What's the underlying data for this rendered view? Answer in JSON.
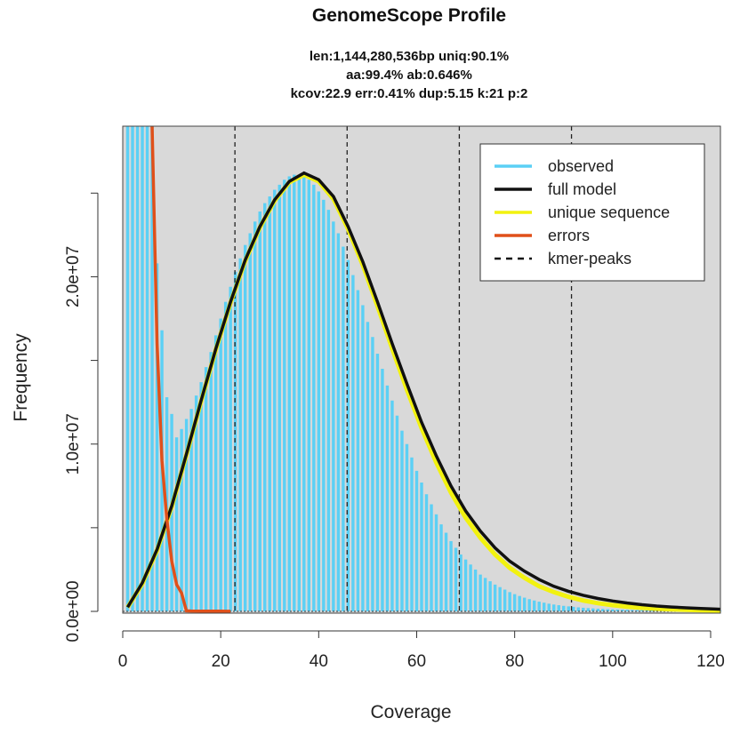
{
  "chart_data": {
    "type": "bar",
    "title": "GenomeScope Profile",
    "subtitle_lines": [
      "len:1,144,280,536bp uniq:90.1%",
      "aa:99.4% ab:0.646%",
      "kcov:22.9 err:0.41%  dup:5.15  k:21 p:2"
    ],
    "xlabel": "Coverage",
    "ylabel": "Frequency",
    "xlim": [
      0,
      122
    ],
    "ylim": [
      0,
      29000000
    ],
    "x_ticks": [
      0,
      20,
      40,
      60,
      80,
      100,
      120
    ],
    "x_tick_labels": [
      "0",
      "20",
      "40",
      "60",
      "80",
      "100",
      "120"
    ],
    "y_ticks": [
      0,
      10000000,
      20000000
    ],
    "y_tick_labels": [
      "0.0e+00",
      "1.0e+07",
      "2.0e+07"
    ],
    "y_minor_ticks": [
      5000000,
      15000000,
      25000000
    ],
    "observed": {
      "x": [
        1,
        2,
        3,
        4,
        5,
        6,
        7,
        8,
        9,
        10,
        11,
        12,
        13,
        14,
        15,
        16,
        17,
        18,
        19,
        20,
        21,
        22,
        23,
        24,
        25,
        26,
        27,
        28,
        29,
        30,
        31,
        32,
        33,
        34,
        35,
        36,
        37,
        38,
        39,
        40,
        41,
        42,
        43,
        44,
        45,
        46,
        47,
        48,
        49,
        50,
        51,
        52,
        53,
        54,
        55,
        56,
        57,
        58,
        59,
        60,
        61,
        62,
        63,
        64,
        65,
        66,
        67,
        68,
        69,
        70,
        71,
        72,
        73,
        74,
        75,
        76,
        77,
        78,
        79,
        80,
        81,
        82,
        83,
        84,
        85,
        86,
        87,
        88,
        89,
        90,
        91,
        92,
        93,
        94,
        95,
        96,
        97,
        98,
        99,
        100,
        101,
        102,
        103,
        104,
        105,
        106,
        107,
        108,
        109,
        110,
        111,
        112,
        113,
        114,
        115,
        116,
        117,
        118,
        119,
        120,
        121,
        122
      ],
      "values": [
        29000000,
        29000000,
        29000000,
        29000000,
        29000000,
        29000000,
        20800000,
        16800000,
        12800000,
        11800000,
        10400000,
        10900000,
        11500000,
        12100000,
        12900000,
        13700000,
        14600000,
        15500000,
        16500000,
        17500000,
        18500000,
        19400000,
        20300000,
        21100000,
        21900000,
        22600000,
        23300000,
        23900000,
        24400000,
        24800000,
        25200000,
        25500000,
        25800000,
        26000000,
        26100000,
        26100000,
        26000000,
        25800000,
        25500000,
        25100000,
        24600000,
        24000000,
        23300000,
        22600000,
        21800000,
        21000000,
        20100000,
        19200000,
        18300000,
        17300000,
        16400000,
        15400000,
        14500000,
        13500000,
        12600000,
        11700000,
        10800000,
        10000000,
        9200000,
        8400000,
        7700000,
        7000000,
        6400000,
        5800000,
        5200000,
        4700000,
        4200000,
        3800000,
        3400000,
        3100000,
        2800000,
        2500000,
        2200000,
        2000000,
        1800000,
        1600000,
        1450000,
        1300000,
        1150000,
        1030000,
        920000,
        820000,
        730000,
        650000,
        580000,
        520000,
        460000,
        410000,
        370000,
        330000,
        300000,
        270000,
        240000,
        215000,
        195000,
        175000,
        160000,
        145000,
        130000,
        118000,
        108000,
        98000,
        90000,
        82000,
        75000,
        69000,
        63000,
        58000,
        53000,
        49000,
        45000,
        42000,
        39000,
        36000,
        33000,
        31000,
        29000,
        27000,
        25000,
        23000,
        21000,
        20000
      ]
    },
    "full_model": {
      "x": [
        1,
        4,
        7,
        10,
        13,
        16,
        19,
        22,
        25,
        28,
        31,
        34,
        37,
        40,
        43,
        46,
        49,
        52,
        55,
        58,
        61,
        64,
        67,
        70,
        73,
        76,
        79,
        82,
        85,
        88,
        91,
        94,
        97,
        100,
        103,
        106,
        109,
        112,
        115,
        118,
        121,
        122
      ],
      "values": [
        250000,
        1700000,
        3700000,
        6300000,
        9400000,
        12600000,
        15700000,
        18500000,
        21000000,
        23000000,
        24600000,
        25700000,
        26200000,
        25800000,
        24800000,
        23000000,
        20900000,
        18500000,
        16000000,
        13600000,
        11300000,
        9300000,
        7500000,
        6000000,
        4800000,
        3800000,
        3000000,
        2400000,
        1900000,
        1500000,
        1200000,
        960000,
        770000,
        620000,
        500000,
        400000,
        320000,
        260000,
        210000,
        170000,
        140000,
        130000
      ]
    },
    "unique_sequence": {
      "x": [
        1,
        4,
        7,
        10,
        13,
        16,
        19,
        22,
        25,
        28,
        31,
        34,
        37,
        40,
        43,
        46,
        49,
        52,
        55,
        58,
        61,
        64,
        67,
        70,
        73,
        76,
        79,
        82,
        85,
        88,
        91,
        94,
        97,
        100,
        103,
        106,
        109,
        112,
        115,
        118,
        121,
        122
      ],
      "values": [
        240000,
        1650000,
        3650000,
        6250000,
        9350000,
        12550000,
        15650000,
        18450000,
        20950000,
        22950000,
        24550000,
        25650000,
        26100000,
        25700000,
        24650000,
        22850000,
        20700000,
        18250000,
        15700000,
        13250000,
        10950000,
        8900000,
        7100000,
        5600000,
        4400000,
        3400000,
        2600000,
        2000000,
        1500000,
        1150000,
        870000,
        650000,
        490000,
        370000,
        280000,
        210000,
        160000,
        120000,
        90000,
        70000,
        55000,
        50000
      ]
    },
    "errors": {
      "x": [
        6,
        7,
        8,
        9,
        10,
        11,
        12,
        13,
        14,
        16,
        18,
        20,
        22
      ],
      "values": [
        29000000,
        16000000,
        9000000,
        5500000,
        3000000,
        1600000,
        1100000,
        30000,
        20000,
        15000,
        10000,
        8000,
        5000
      ]
    },
    "kmer_peaks": [
      22.9,
      45.8,
      68.7,
      91.6
    ],
    "series": [
      {
        "name": "observed",
        "color": "#5bd0f5"
      },
      {
        "name": "full model",
        "color": "#111111"
      },
      {
        "name": "unique sequence",
        "color": "#f2f20f"
      },
      {
        "name": "errors",
        "color": "#e0501a"
      },
      {
        "name": "kmer-peaks",
        "color": "#111111",
        "dashed": true
      }
    ],
    "legend_position": "top-right",
    "plot_background": "#d9d9d9",
    "grid": false
  }
}
